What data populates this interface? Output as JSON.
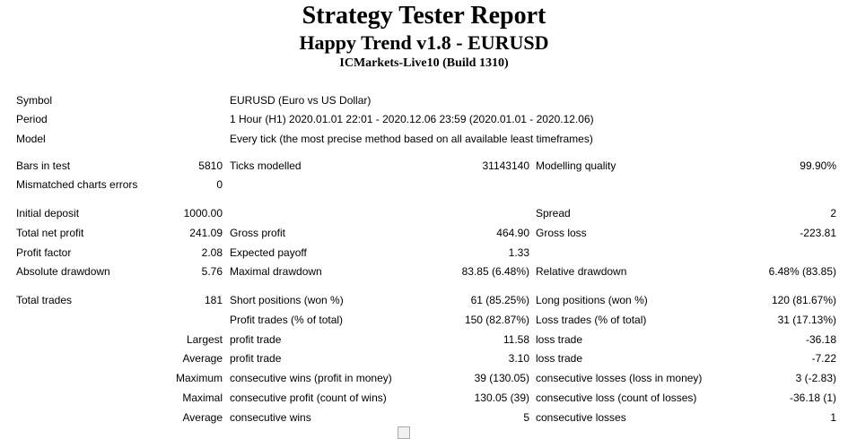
{
  "header": {
    "title": "Strategy Tester Report",
    "subtitle": "Happy Trend v1.8 - EURUSD",
    "server": "ICMarkets-Live10 (Build 1310)"
  },
  "symbol": {
    "label": "Symbol",
    "value": "EURUSD (Euro vs US Dollar)"
  },
  "period": {
    "label": "Period",
    "value": "1 Hour (H1) 2020.01.01 22:01 - 2020.12.06 23:59 (2020.01.01 - 2020.12.06)"
  },
  "model": {
    "label": "Model",
    "value": "Every tick (the most precise method based on all available least timeframes)"
  },
  "bars_in_test": {
    "label": "Bars in test",
    "value": "5810"
  },
  "ticks_modelled": {
    "label": "Ticks modelled",
    "value": "31143140"
  },
  "modelling_quality": {
    "label": "Modelling quality",
    "value": "99.90%"
  },
  "mismatched_charts_errors": {
    "label": "Mismatched charts errors",
    "value": "0"
  },
  "initial_deposit": {
    "label": "Initial deposit",
    "value": "1000.00"
  },
  "spread": {
    "label": "Spread",
    "value": "2"
  },
  "total_net_profit": {
    "label": "Total net profit",
    "value": "241.09"
  },
  "gross_profit": {
    "label": "Gross profit",
    "value": "464.90"
  },
  "gross_loss": {
    "label": "Gross loss",
    "value": "-223.81"
  },
  "profit_factor": {
    "label": "Profit factor",
    "value": "2.08"
  },
  "expected_payoff": {
    "label": "Expected payoff",
    "value": "1.33"
  },
  "absolute_drawdown": {
    "label": "Absolute drawdown",
    "value": "5.76"
  },
  "maximal_drawdown": {
    "label": "Maximal drawdown",
    "value": "83.85 (6.48%)"
  },
  "relative_drawdown": {
    "label": "Relative drawdown",
    "value": "6.48% (83.85)"
  },
  "total_trades": {
    "label": "Total trades",
    "value": "181"
  },
  "short_positions": {
    "label": "Short positions (won %)",
    "value": "61 (85.25%)"
  },
  "long_positions": {
    "label": "Long positions (won %)",
    "value": "120 (81.67%)"
  },
  "profit_trades": {
    "label": "Profit trades (% of total)",
    "value": "150 (82.87%)"
  },
  "loss_trades": {
    "label": "Loss trades (% of total)",
    "value": "31 (17.13%)"
  },
  "largest": {
    "prefix": "Largest",
    "profit_label": "profit trade",
    "profit_value": "11.58",
    "loss_label": "loss trade",
    "loss_value": "-36.18"
  },
  "average": {
    "prefix": "Average",
    "profit_label": "profit trade",
    "profit_value": "3.10",
    "loss_label": "loss trade",
    "loss_value": "-7.22"
  },
  "maximum": {
    "prefix": "Maximum",
    "wins_label": "consecutive wins (profit in money)",
    "wins_value": "39 (130.05)",
    "losses_label": "consecutive losses (loss in money)",
    "losses_value": "3 (-2.83)"
  },
  "maximal": {
    "prefix": "Maximal",
    "profit_label": "consecutive profit (count of wins)",
    "profit_value": "130.05 (39)",
    "loss_label": "consecutive loss (count of losses)",
    "loss_value": "-36.18 (1)"
  },
  "average_consecutive": {
    "prefix": "Average",
    "wins_label": "consecutive wins",
    "wins_value": "5",
    "losses_label": "consecutive losses",
    "losses_value": "1"
  }
}
